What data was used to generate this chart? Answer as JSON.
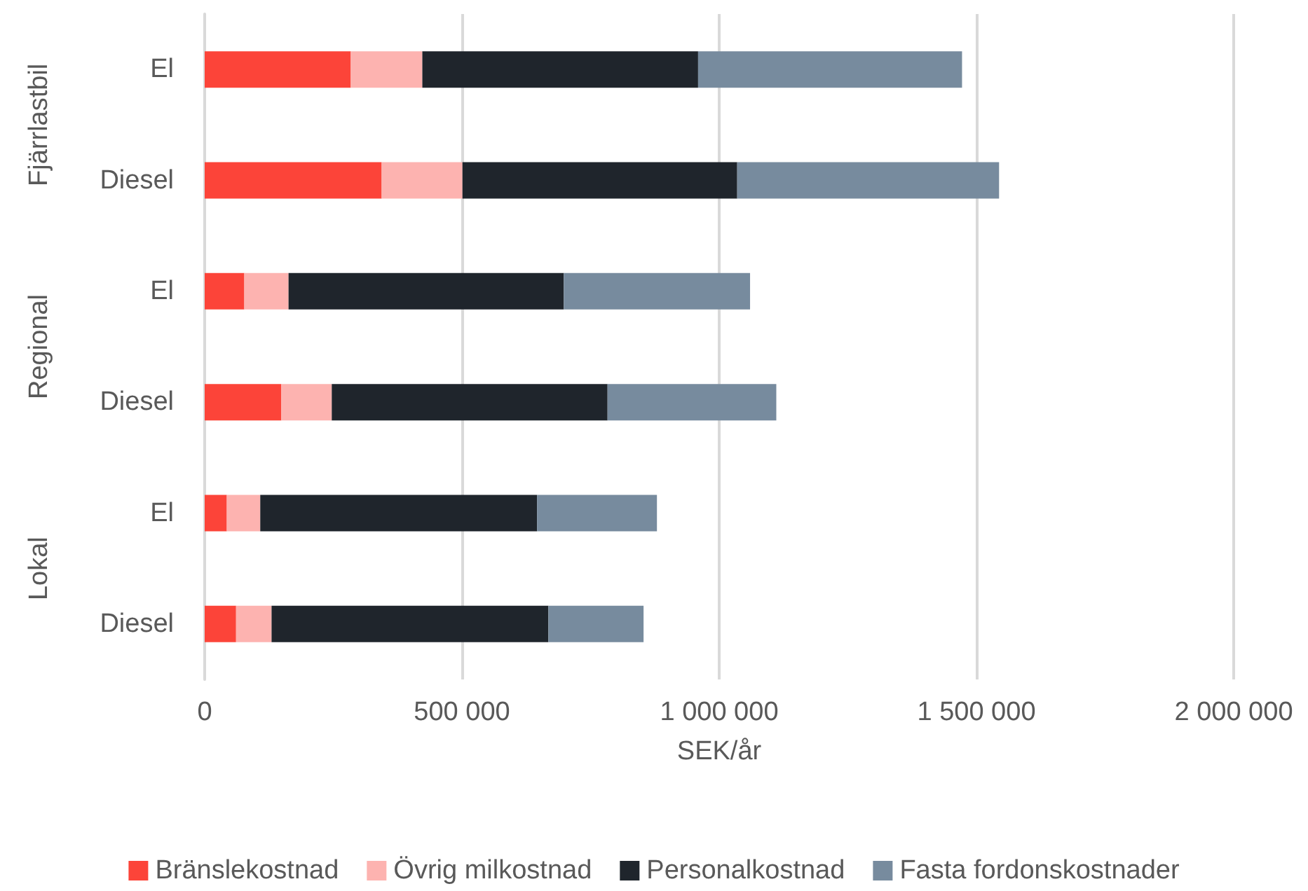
{
  "chart_data": {
    "type": "bar",
    "orientation": "horizontal",
    "stacked": true,
    "categories": [
      "El",
      "Diesel",
      "El",
      "Diesel",
      "El",
      "Diesel"
    ],
    "annotations": [
      "Fjärrlastbil",
      "Regional",
      "Lokal"
    ],
    "xlabel": "SEK/år",
    "series": [
      {
        "name": "Bränslekostnad",
        "color": "#fc4439",
        "values": [
          284000,
          344000,
          77000,
          149000,
          43000,
          61000
        ]
      },
      {
        "name": "Övrig milkostnad",
        "color": "#fdb3b0",
        "values": [
          139000,
          157000,
          86000,
          98000,
          65000,
          69000
        ]
      },
      {
        "name": "Personalkostnad",
        "color": "#1f252c",
        "values": [
          536000,
          534000,
          535000,
          536000,
          538000,
          538000
        ]
      },
      {
        "name": "Fasta fordonskostnader",
        "color": "#778b9e",
        "values": [
          513000,
          509000,
          362000,
          328000,
          233000,
          185000
        ]
      }
    ],
    "xlim": [
      0,
      2000000
    ],
    "xticks": [
      0,
      {
        "value": 500000,
        "label": "500 000"
      },
      {
        "value": 1000000,
        "label": "1 000 000"
      },
      {
        "value": 1500000,
        "label": "1 500 000"
      },
      {
        "value": 2000000,
        "label": "2 000 000"
      }
    ],
    "grid": "x",
    "legend": "bottom"
  }
}
